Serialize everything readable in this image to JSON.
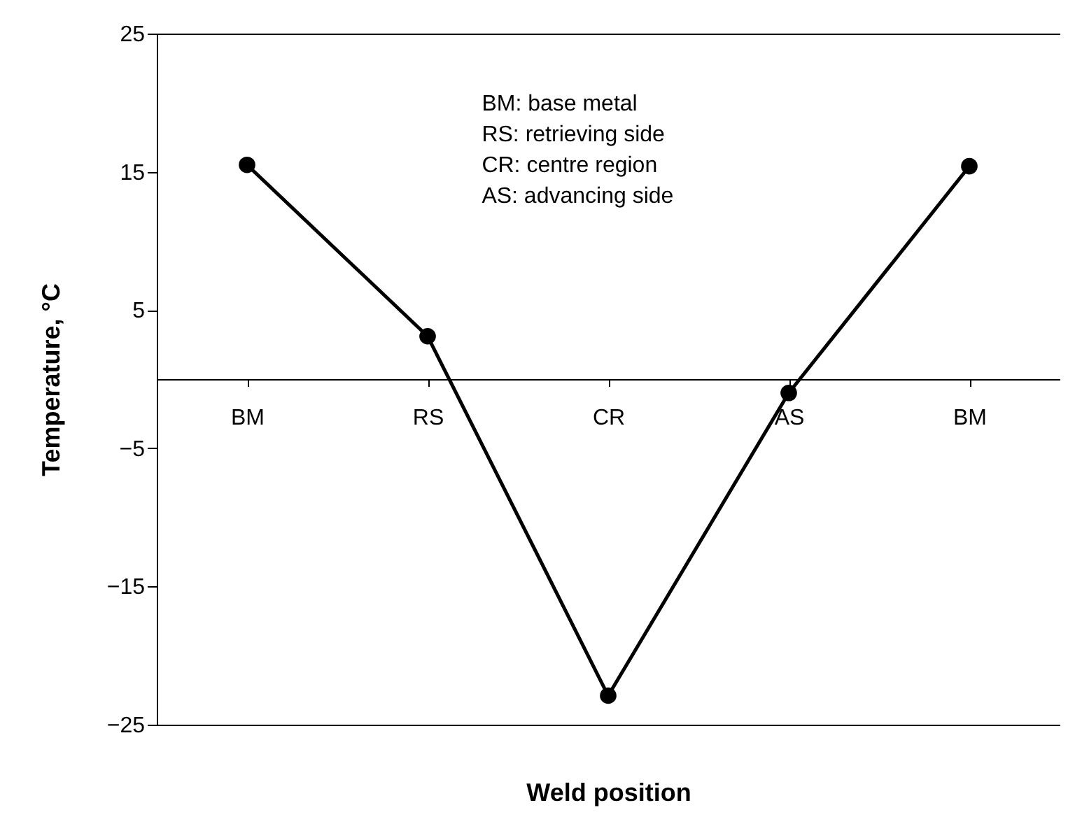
{
  "chart_data": {
    "type": "line",
    "categories": [
      "BM",
      "RS",
      "CR",
      "AS",
      "BM"
    ],
    "series": [
      {
        "color": "#000000",
        "values": [
          15.5,
          3.1,
          -22.9,
          -1,
          15.4
        ]
      }
    ],
    "xlabel": "Weld position",
    "ylabel": "Temperature, °C",
    "ylim": [
      -25,
      25
    ],
    "yticks": [
      -25,
      -15,
      -5,
      5,
      15,
      25
    ],
    "annotations": [
      "BM: base metal",
      "RS: retrieving side",
      "CR: centre region",
      "AS: advancing side"
    ],
    "marker": "circle",
    "line_style": "solid",
    "grid": false
  }
}
